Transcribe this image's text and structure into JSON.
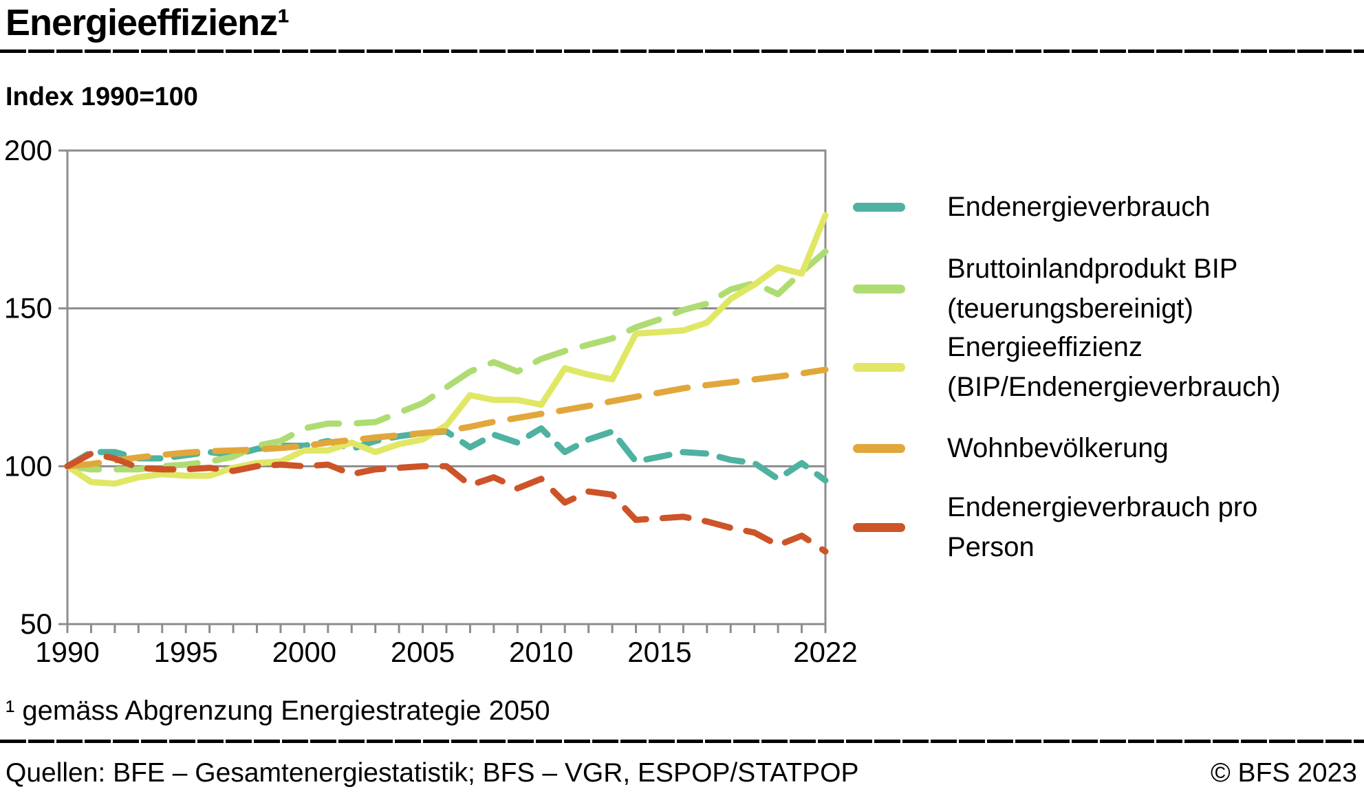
{
  "header": {
    "title": "Energieeffizienz¹",
    "subtitle": "Index 1990=100"
  },
  "footer": {
    "footnote": "¹ gemäss Abgrenzung Energiestrategie 2050",
    "sources": "Quellen: BFE – Gesamtenergiestatistik; BFS – VGR, ESPOP/STATPOP",
    "copyright": "© BFS 2023"
  },
  "colors": {
    "endenergieverbrauch": "#4FB2A1",
    "bip": "#AEDC72",
    "energieeffizienz": "#E0E765",
    "wohnbevoelkerung": "#E1A73B",
    "pro_person": "#CC5428",
    "axis_gray": "#8c8c8c",
    "text_black": "#000000"
  },
  "chart_data": {
    "type": "line",
    "title": "Energieeffizienz¹",
    "subtitle": "Index 1990=100",
    "xlabel": "",
    "ylabel": "Index 1990=100",
    "xlim": [
      1990,
      2022
    ],
    "ylim": [
      50,
      200
    ],
    "xticks": [
      1990,
      1995,
      2000,
      2005,
      2010,
      2015,
      2022
    ],
    "yticks": [
      50,
      100,
      150,
      200
    ],
    "grid_y": [
      100,
      150
    ],
    "grid": true,
    "legend_position": "right",
    "x": [
      1990,
      1991,
      1992,
      1993,
      1994,
      1995,
      1996,
      1997,
      1998,
      1999,
      2000,
      2001,
      2002,
      2003,
      2004,
      2005,
      2006,
      2007,
      2008,
      2009,
      2010,
      2011,
      2012,
      2013,
      2014,
      2015,
      2016,
      2017,
      2018,
      2019,
      2020,
      2021,
      2022
    ],
    "series": [
      {
        "name": "Endenergieverbrauch",
        "label_lines": [
          "Endenergieverbrauch"
        ],
        "color": "#4FB2A1",
        "dash": [
          34,
          20
        ],
        "values": [
          100,
          104.5,
          104.5,
          102.5,
          102.5,
          103.5,
          104.5,
          103.5,
          105.5,
          106.5,
          106.5,
          108,
          105.5,
          108,
          109.5,
          110.5,
          111,
          106,
          110,
          107.5,
          112,
          104.5,
          108.5,
          111,
          101.5,
          103,
          104.5,
          104,
          102,
          101,
          96,
          101,
          95.5
        ]
      },
      {
        "name": "Bruttoinlandprodukt BIP (teuerungsbereinigt)",
        "label_lines": [
          "Bruttoinlandprodukt BIP",
          "(teuerungsbereinigt)"
        ],
        "color": "#AEDC72",
        "dash": [
          46,
          26
        ],
        "values": [
          100,
          99,
          99,
          99,
          100,
          100.5,
          101.5,
          103,
          106.5,
          108,
          112,
          113.5,
          113.5,
          114,
          117,
          120,
          125,
          130,
          133,
          130,
          134,
          136.5,
          138.5,
          140.5,
          144,
          146.5,
          149.5,
          151.5,
          156,
          158,
          154.5,
          161.5,
          168
        ]
      },
      {
        "name": "Energieeffizienz (BIP/Endenergieverbrauch)",
        "label_lines": [
          "Energieeffizienz",
          "(BIP/Endenergieverbrauch)"
        ],
        "color": "#E0E765",
        "dash": null,
        "values": [
          100,
          95,
          94.5,
          96.5,
          97.5,
          97,
          97,
          99.5,
          101,
          101.5,
          105,
          105,
          107.5,
          104.5,
          107,
          108.5,
          113,
          122.5,
          121,
          121,
          119.5,
          131,
          129,
          127.5,
          142,
          142.5,
          143,
          145.5,
          153,
          157.5,
          163,
          161,
          179.5
        ]
      },
      {
        "name": "Wohnbevölkerung",
        "label_lines": [
          "Wohnbevölkerung"
        ],
        "color": "#E1A73B",
        "dash": [
          46,
          26
        ],
        "values": [
          100,
          100.7,
          101.8,
          102.8,
          103.6,
          104.3,
          104.8,
          105,
          105.3,
          105.8,
          106.4,
          107.5,
          108.3,
          109.1,
          109.8,
          110.5,
          111.2,
          112.5,
          114.1,
          115.3,
          116.6,
          117.8,
          119.1,
          120.6,
          122,
          123.3,
          124.7,
          125.7,
          126.6,
          127.5,
          128.4,
          129.4,
          130.6
        ]
      },
      {
        "name": "Endenergieverbrauch pro Person",
        "label_lines": [
          "Endenergieverbrauch pro",
          "Person"
        ],
        "color": "#CC5428",
        "dash": [
          38,
          24
        ],
        "values": [
          100,
          104,
          102.5,
          99.5,
          99,
          99,
          99.5,
          98.5,
          100,
          100.5,
          100,
          100.5,
          97.5,
          99,
          99.5,
          100,
          100,
          94,
          96.5,
          93,
          96,
          88.5,
          92,
          91,
          83,
          83.5,
          84,
          82.5,
          80.5,
          79,
          75,
          78,
          73
        ]
      }
    ]
  }
}
